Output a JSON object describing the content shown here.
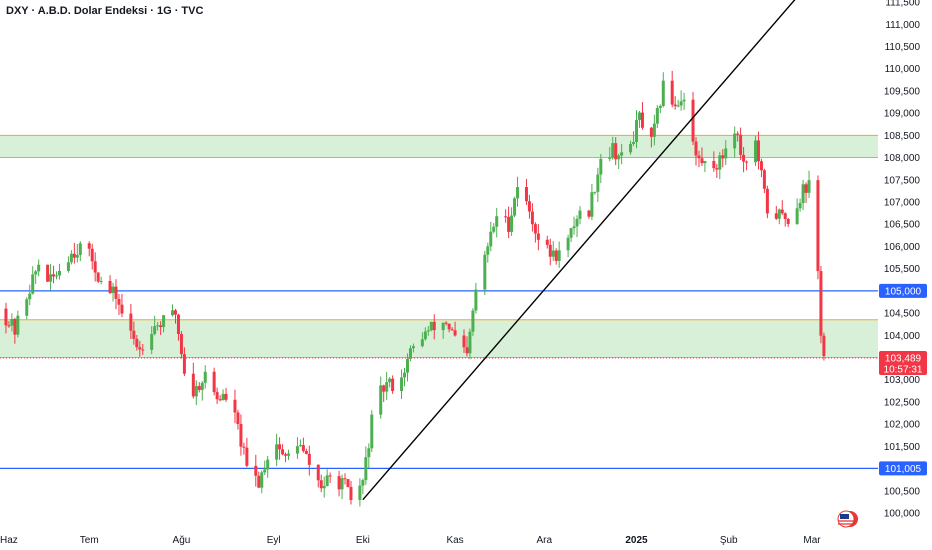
{
  "header": {
    "title": "DXY · A.B.D. Dolar Endeksi · 1G · TVC"
  },
  "colors": {
    "up": "#4caf50",
    "down": "#f23645",
    "zone_fill": "#d8f0d8",
    "zone_border": "#f5a623",
    "level_line": "#2962ff",
    "trendline": "#000000",
    "axis_text": "#131722"
  },
  "icons": {
    "flag": "us-flag-icon"
  },
  "chart_data": {
    "type": "candlestick",
    "symbol": "DXY",
    "title": "DXY · A.B.D. Dolar Endeksi · 1G · TVC",
    "ylim": [
      99.75,
      111.9
    ],
    "y_ticks": [
      "100,000",
      "100,500",
      "101,000",
      "101,500",
      "102,000",
      "102,500",
      "103,000",
      "103,500",
      "104,000",
      "104,500",
      "105,000",
      "105,500",
      "106,000",
      "106,500",
      "107,000",
      "107,500",
      "108,000",
      "108,500",
      "109,000",
      "109,500",
      "110,000",
      "110,500",
      "111,000",
      "111,500"
    ],
    "x_ticks": [
      {
        "label": "Haz",
        "date": "2024-06-01"
      },
      {
        "label": "Tem",
        "date": "2024-07-01"
      },
      {
        "label": "Ağu",
        "date": "2024-08-01"
      },
      {
        "label": "Eyl",
        "date": "2024-09-01"
      },
      {
        "label": "Eki",
        "date": "2024-10-01"
      },
      {
        "label": "Kas",
        "date": "2024-11-01"
      },
      {
        "label": "Ara",
        "date": "2024-12-01"
      },
      {
        "label": "2025",
        "date": "2025-01-01",
        "bold": true
      },
      {
        "label": "Şub",
        "date": "2025-02-01"
      },
      {
        "label": "Mar",
        "date": "2025-03-01"
      }
    ],
    "date_range": [
      "2024-06-01",
      "2025-03-05"
    ],
    "zones": [
      {
        "low": 108.0,
        "high": 108.5
      },
      {
        "low": 103.5,
        "high": 104.35
      }
    ],
    "levels": [
      {
        "value": 105.0,
        "label": "105,000"
      },
      {
        "value": 101.005,
        "label": "101,005"
      }
    ],
    "trendline": {
      "start": {
        "date": "2024-10-01",
        "value": 100.3
      },
      "end": {
        "date": "2025-03-01",
        "value": 112.0
      }
    },
    "last_price": {
      "value": 103.489,
      "label": "103,489",
      "countdown": "10:57:31"
    },
    "path": [
      [
        "2024-06-01",
        104.6
      ],
      [
        "2024-06-06",
        104.1
      ],
      [
        "2024-06-10",
        104.9
      ],
      [
        "2024-06-14",
        105.6
      ],
      [
        "2024-06-18",
        105.2
      ],
      [
        "2024-06-24",
        105.8
      ],
      [
        "2024-06-28",
        106.0
      ],
      [
        "2024-07-02",
        105.7
      ],
      [
        "2024-07-06",
        105.0
      ],
      [
        "2024-07-10",
        104.9
      ],
      [
        "2024-07-14",
        104.1
      ],
      [
        "2024-07-18",
        103.7
      ],
      [
        "2024-07-22",
        104.2
      ],
      [
        "2024-07-26",
        104.3
      ],
      [
        "2024-07-30",
        104.5
      ],
      [
        "2024-08-02",
        103.2
      ],
      [
        "2024-08-05",
        102.7
      ],
      [
        "2024-08-09",
        103.1
      ],
      [
        "2024-08-13",
        102.6
      ],
      [
        "2024-08-17",
        102.6
      ],
      [
        "2024-08-20",
        101.9
      ],
      [
        "2024-08-23",
        101.0
      ],
      [
        "2024-08-27",
        100.7
      ],
      [
        "2024-09-01",
        101.7
      ],
      [
        "2024-09-05",
        101.2
      ],
      [
        "2024-09-09",
        101.6
      ],
      [
        "2024-09-13",
        101.1
      ],
      [
        "2024-09-17",
        100.6
      ],
      [
        "2024-09-21",
        100.8
      ],
      [
        "2024-09-25",
        100.6
      ],
      [
        "2024-09-27",
        100.3
      ],
      [
        "2024-10-01",
        100.7
      ],
      [
        "2024-10-05",
        102.5
      ],
      [
        "2024-10-09",
        102.9
      ],
      [
        "2024-10-13",
        102.9
      ],
      [
        "2024-10-17",
        103.6
      ],
      [
        "2024-10-21",
        104.0
      ],
      [
        "2024-10-25",
        104.2
      ],
      [
        "2024-10-29",
        104.3
      ],
      [
        "2024-11-02",
        103.8
      ],
      [
        "2024-11-05",
        103.5
      ],
      [
        "2024-11-08",
        105.0
      ],
      [
        "2024-11-12",
        106.0
      ],
      [
        "2024-11-15",
        106.7
      ],
      [
        "2024-11-19",
        106.5
      ],
      [
        "2024-11-22",
        107.4
      ],
      [
        "2024-11-26",
        106.8
      ],
      [
        "2024-11-30",
        106.0
      ],
      [
        "2024-12-04",
        105.8
      ],
      [
        "2024-12-08",
        105.9
      ],
      [
        "2024-12-12",
        106.7
      ],
      [
        "2024-12-16",
        106.8
      ],
      [
        "2024-12-20",
        108.0
      ],
      [
        "2024-12-24",
        108.2
      ],
      [
        "2024-12-28",
        107.9
      ],
      [
        "2025-01-02",
        108.9
      ],
      [
        "2025-01-06",
        108.3
      ],
      [
        "2025-01-10",
        109.6
      ],
      [
        "2025-01-14",
        109.2
      ],
      [
        "2025-01-17",
        109.4
      ],
      [
        "2025-01-21",
        108.0
      ],
      [
        "2025-01-25",
        107.8
      ],
      [
        "2025-01-29",
        107.9
      ],
      [
        "2025-02-01",
        108.4
      ],
      [
        "2025-02-03",
        108.7
      ],
      [
        "2025-02-06",
        107.9
      ],
      [
        "2025-02-10",
        108.3
      ],
      [
        "2025-02-14",
        106.8
      ],
      [
        "2025-02-18",
        106.7
      ],
      [
        "2025-02-22",
        106.6
      ],
      [
        "2025-02-26",
        107.3
      ],
      [
        "2025-03-01",
        107.4
      ],
      [
        "2025-03-03",
        105.4
      ],
      [
        "2025-03-04",
        104.1
      ],
      [
        "2025-03-05",
        103.5
      ]
    ]
  }
}
